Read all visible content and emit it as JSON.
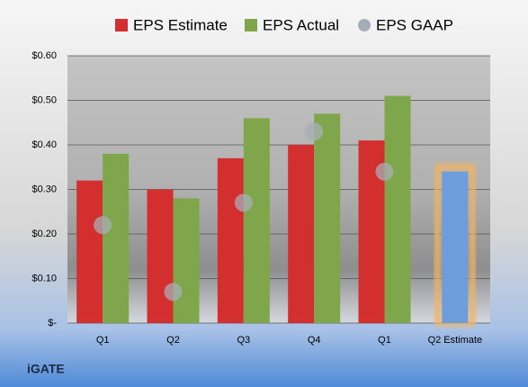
{
  "chart_data": {
    "type": "bar",
    "categories": [
      "Q1",
      "Q2",
      "Q3",
      "Q4",
      "Q1",
      "Q2 Estimate"
    ],
    "series": [
      {
        "name": "EPS Estimate",
        "color": "#d32f2f",
        "values": [
          0.32,
          0.3,
          0.37,
          0.4,
          0.41,
          0.34
        ],
        "style": "bar"
      },
      {
        "name": "EPS Actual",
        "color": "#7fa64a",
        "values": [
          0.38,
          0.28,
          0.46,
          0.47,
          0.51,
          null
        ],
        "style": "bar"
      },
      {
        "name": "EPS GAAP",
        "color": "#a8adb5",
        "values": [
          0.22,
          0.07,
          0.27,
          0.43,
          0.34,
          null
        ],
        "style": "circle"
      }
    ],
    "highlight": {
      "series": 0,
      "index": 5,
      "color": "#6e9ddb",
      "glow": "#f4b35e"
    },
    "ylim": [
      0,
      0.6
    ],
    "yticks": [
      {
        "value": 0,
        "label": "$-"
      },
      {
        "value": 0.1,
        "label": "$0.10"
      },
      {
        "value": 0.2,
        "label": "$0.20"
      },
      {
        "value": 0.3,
        "label": "$0.30"
      },
      {
        "value": 0.4,
        "label": "$0.40"
      },
      {
        "value": 0.5,
        "label": "$0.50"
      },
      {
        "value": 0.6,
        "label": "$0.60"
      }
    ],
    "grid": true,
    "footer": "iGATE"
  }
}
